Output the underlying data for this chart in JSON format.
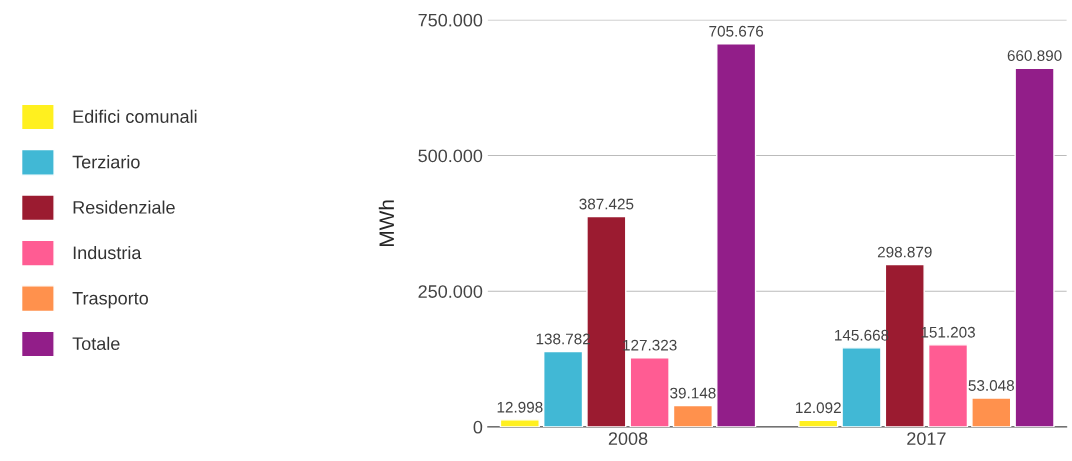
{
  "chart_data": {
    "type": "bar",
    "ylabel": "MWh",
    "categories": [
      "2008",
      "2017"
    ],
    "series": [
      {
        "name": "Edifici comunali",
        "color": "#fff01f",
        "values": [
          12998,
          12092
        ],
        "value_labels": [
          "12.998",
          "12.092"
        ]
      },
      {
        "name": "Terziario",
        "color": "#41b8d5",
        "values": [
          138782,
          145668
        ],
        "value_labels": [
          "138.782",
          "145.668"
        ]
      },
      {
        "name": "Residenziale",
        "color": "#9b1b30",
        "values": [
          387425,
          298879
        ],
        "value_labels": [
          "387.425",
          "298.879"
        ]
      },
      {
        "name": "Industria",
        "color": "#ff5c93",
        "values": [
          127323,
          151203
        ],
        "value_labels": [
          "127.323",
          "151.203"
        ]
      },
      {
        "name": "Trasporto",
        "color": "#ff914d",
        "values": [
          39148,
          53048
        ],
        "value_labels": [
          "39.148",
          "53.048"
        ]
      },
      {
        "name": "Totale",
        "color": "#921e89",
        "values": [
          705676,
          660890
        ],
        "value_labels": [
          "705.676",
          "660.890"
        ]
      }
    ],
    "ylim": [
      0,
      750000
    ],
    "yticks": [
      {
        "value": 0,
        "label": "0"
      },
      {
        "value": 250000,
        "label": "250.000"
      },
      {
        "value": 500000,
        "label": "500.000"
      },
      {
        "value": 750000,
        "label": "750.000"
      }
    ],
    "grid": "y",
    "legend": "left"
  }
}
